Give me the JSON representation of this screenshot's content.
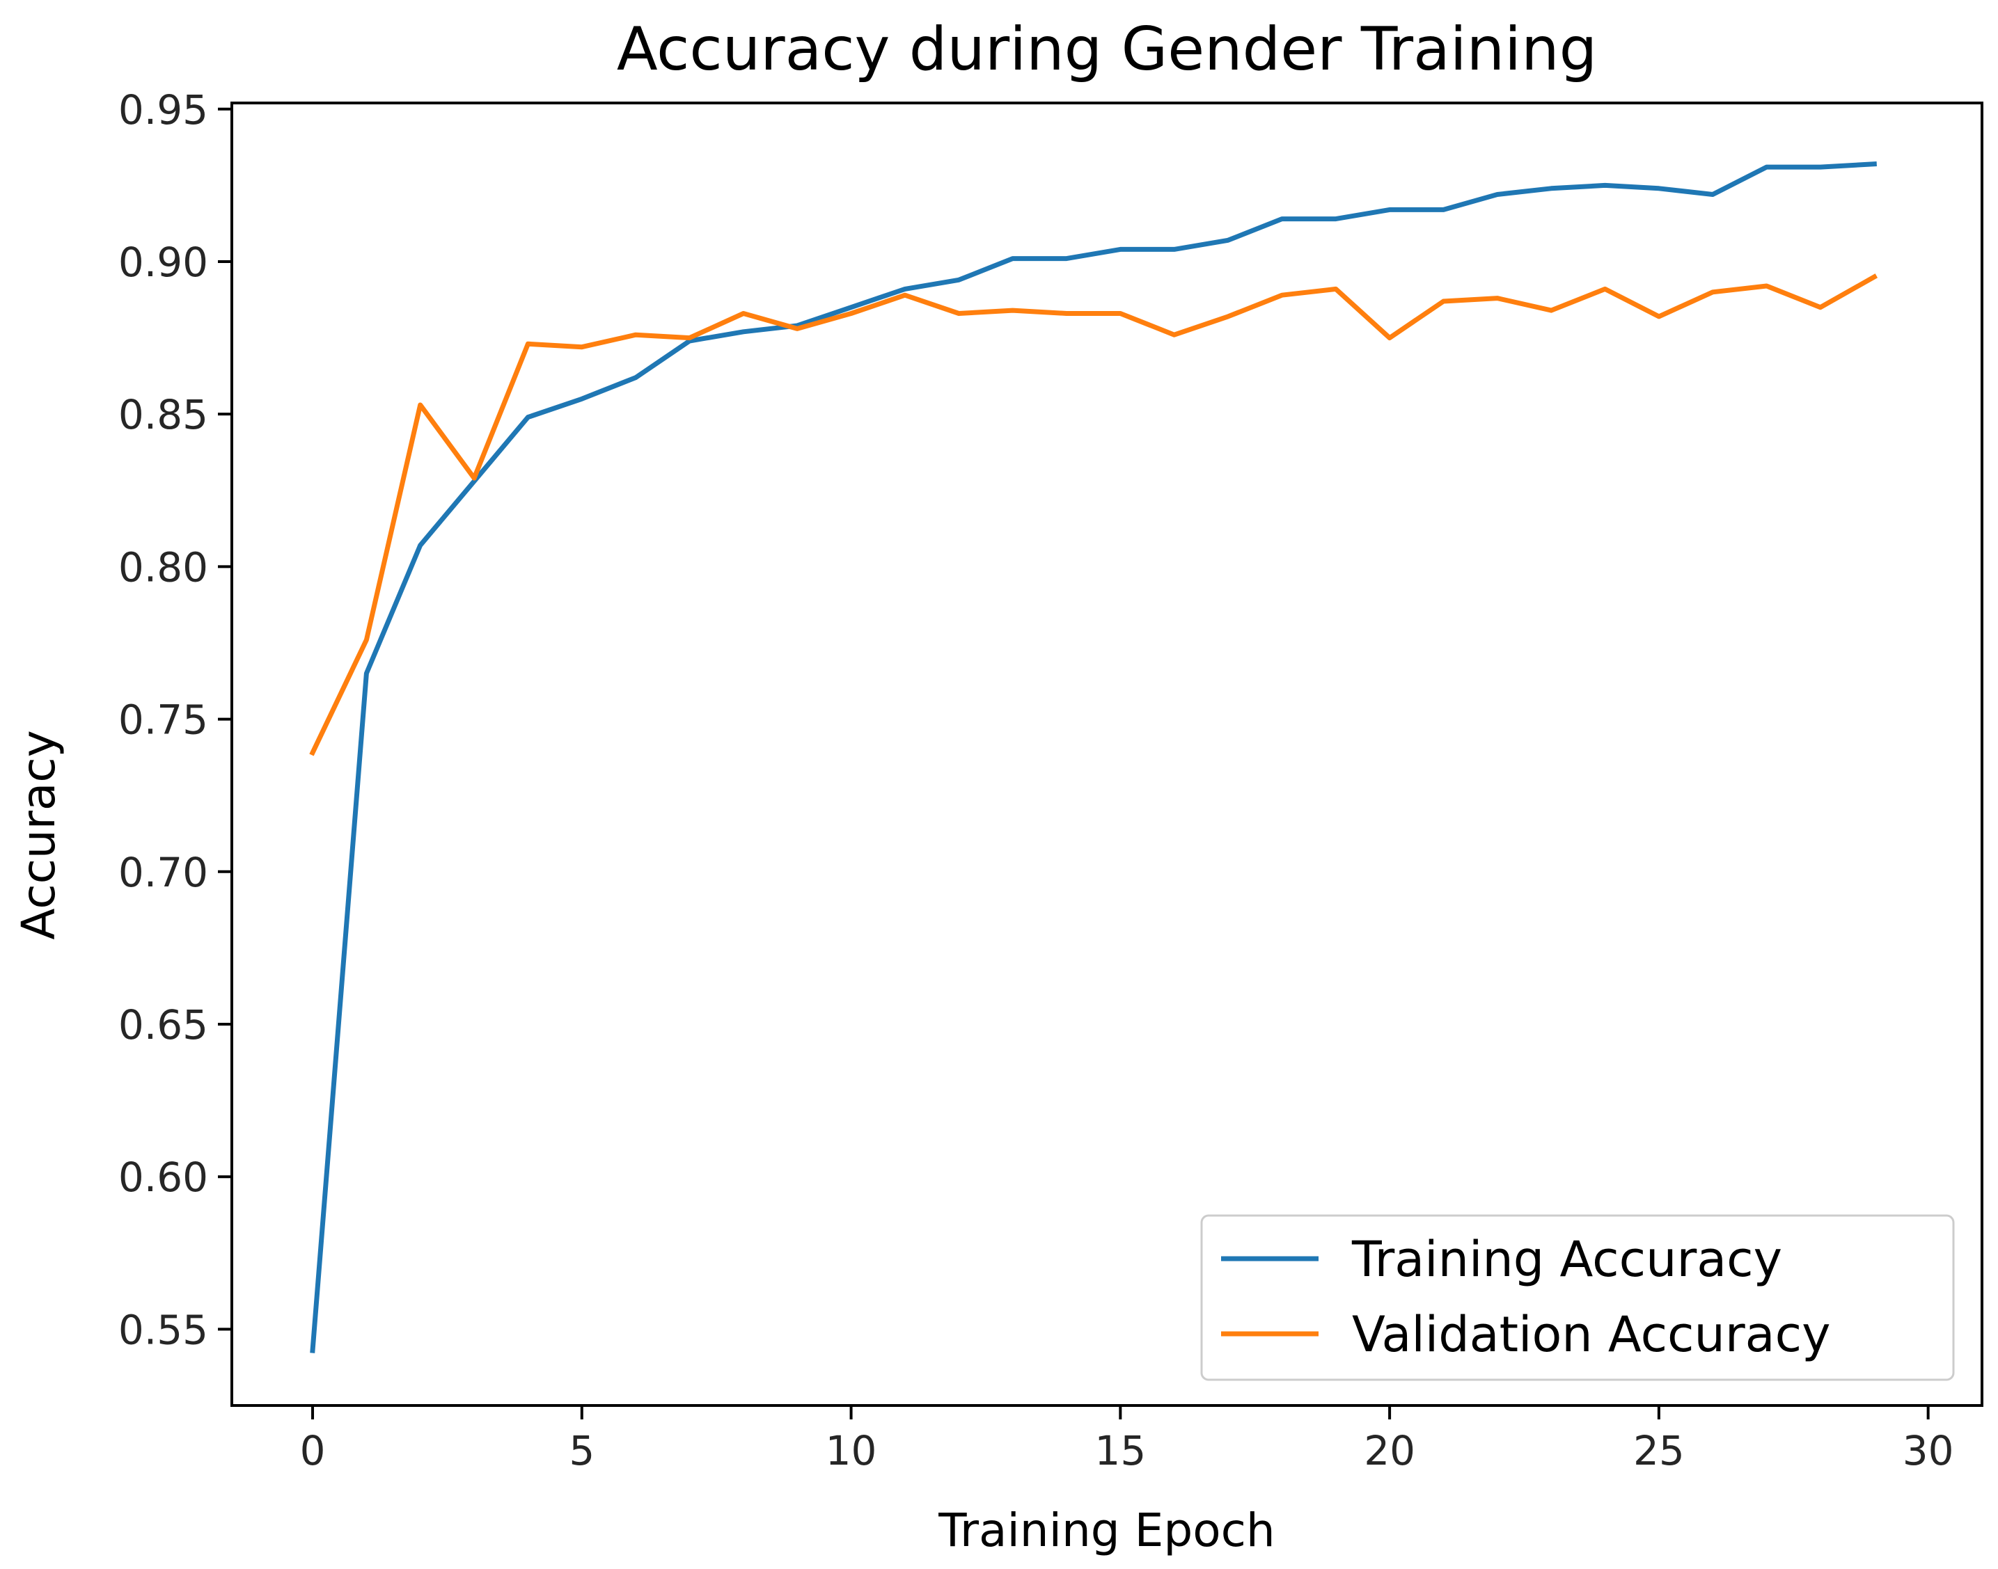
{
  "chart_data": {
    "type": "line",
    "title": "Accuracy during Gender Training",
    "xlabel": "Training Epoch",
    "ylabel": "Accuracy",
    "xlim": [
      -1.5,
      31
    ],
    "ylim": [
      0.525,
      0.952
    ],
    "xticks": [
      0,
      5,
      10,
      15,
      20,
      25,
      30
    ],
    "xtick_labels": [
      "0",
      "5",
      "10",
      "15",
      "20",
      "25",
      "30"
    ],
    "yticks": [
      0.55,
      0.6,
      0.65,
      0.7,
      0.75,
      0.8,
      0.85,
      0.9,
      0.95
    ],
    "ytick_labels": [
      "0.55",
      "0.60",
      "0.65",
      "0.70",
      "0.75",
      "0.80",
      "0.85",
      "0.90",
      "0.95"
    ],
    "grid": false,
    "legend_position": "lower-right",
    "x": [
      0,
      1,
      2,
      3,
      4,
      5,
      6,
      7,
      8,
      9,
      10,
      11,
      12,
      13,
      14,
      15,
      16,
      17,
      18,
      19,
      20,
      21,
      22,
      23,
      24,
      25,
      26,
      27,
      28,
      29
    ],
    "series": [
      {
        "name": "Training Accuracy",
        "color": "#1f77b4",
        "values": [
          0.543,
          0.765,
          0.807,
          0.828,
          0.849,
          0.855,
          0.862,
          0.874,
          0.877,
          0.879,
          0.885,
          0.891,
          0.894,
          0.901,
          0.901,
          0.904,
          0.904,
          0.907,
          0.914,
          0.914,
          0.917,
          0.917,
          0.922,
          0.924,
          0.925,
          0.924,
          0.922,
          0.931,
          0.931,
          0.932
        ]
      },
      {
        "name": "Validation Accuracy",
        "color": "#ff7f0e",
        "values": [
          0.739,
          0.776,
          0.853,
          0.829,
          0.873,
          0.872,
          0.876,
          0.875,
          0.883,
          0.878,
          0.883,
          0.889,
          0.883,
          0.884,
          0.883,
          0.883,
          0.876,
          0.882,
          0.889,
          0.891,
          0.875,
          0.887,
          0.888,
          0.884,
          0.891,
          0.882,
          0.89,
          0.892,
          0.885,
          0.895
        ]
      }
    ]
  }
}
